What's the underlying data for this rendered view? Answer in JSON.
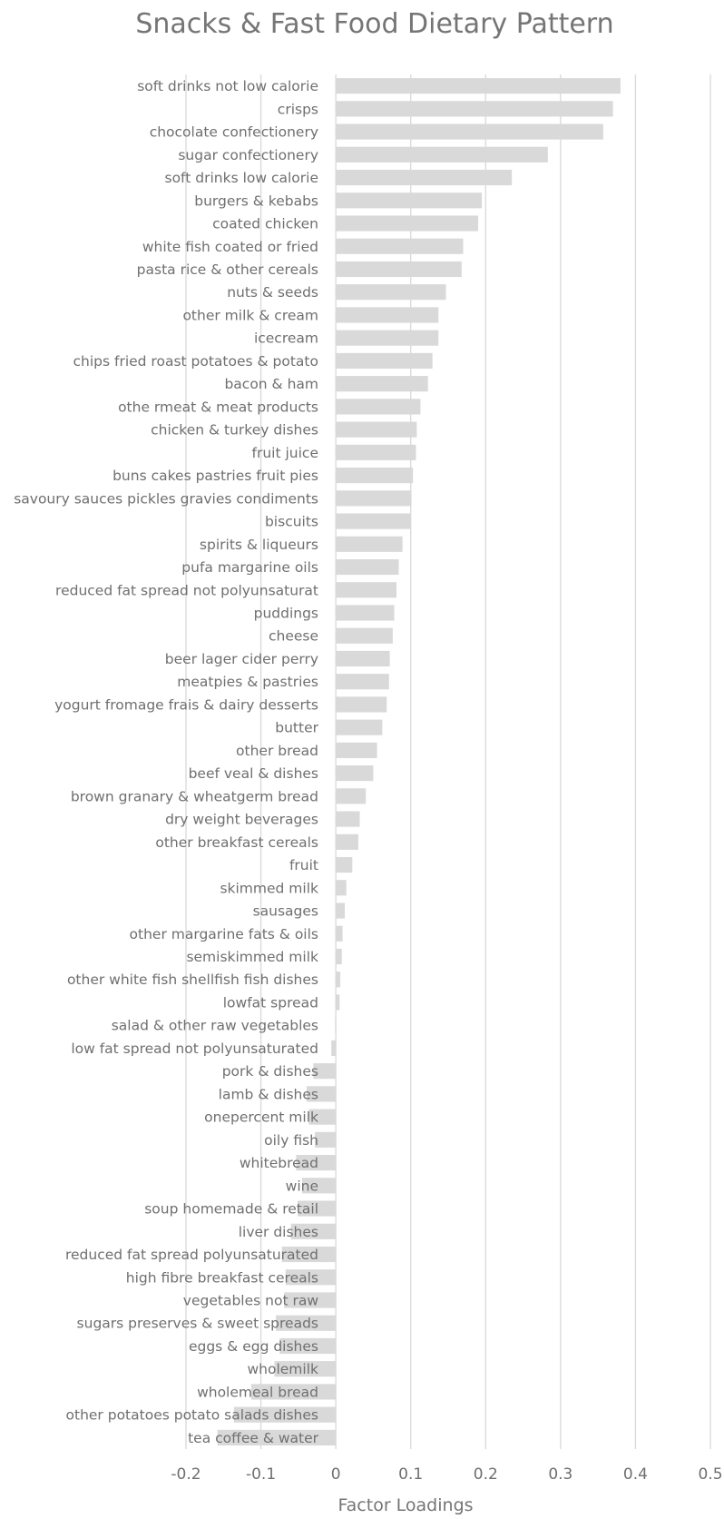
{
  "chart_data": {
    "type": "bar",
    "orientation": "horizontal",
    "title": "Snacks & Fast Food Dietary Pattern",
    "xlabel": "Factor Loadings",
    "ylabel": "",
    "xlim": [
      -0.2,
      0.5
    ],
    "x_ticks": [
      "-0.2",
      "-0.1",
      "0",
      "0.1",
      "0.2",
      "0.3",
      "0.4",
      "0.5"
    ],
    "grid": "vertical",
    "bar_color": "#d9d9d9",
    "categories": [
      "soft drinks not low calorie",
      "crisps",
      "chocolate confectionery",
      "sugar confectionery",
      "soft drinks low calorie",
      "burgers & kebabs",
      "coated chicken",
      "white fish coated or fried",
      "pasta rice & other cereals",
      "nuts & seeds",
      "other milk & cream",
      "icecream",
      "chips fried roast potatoes  & potato",
      "bacon & ham",
      "othe rmeat & meat products",
      "chicken & turkey dishes",
      "fruit juice",
      "buns cakes pastries fruit pies",
      "savoury sauces pickles gravies condiments",
      "biscuits",
      "spirits & liqueurs",
      "pufa margarine oils",
      "reduced fat spread not polyunsaturat",
      "puddings",
      "cheese",
      "beer lager cider perry",
      "meatpies & pastries",
      "yogurt fromage frais & dairy desserts",
      "butter",
      "other bread",
      "beef veal & dishes",
      "brown granary & wheatgerm bread",
      "dry weight beverages",
      "other breakfast cereals",
      "fruit",
      "skimmed milk",
      "sausages",
      "other margarine fats & oils",
      "semiskimmed milk",
      "other white fish shellfish fish dishes",
      "lowfat spread",
      "salad & other raw vegetables",
      "low fat spread not polyunsaturated",
      "pork & dishes",
      "lamb & dishes",
      "onepercent milk",
      "oily fish",
      "whitebread",
      "wine",
      "soup homemade & retail",
      "liver dishes",
      "reduced fat spread polyunsaturated",
      "high fibre breakfast cereals",
      "vegetables not raw",
      "sugars preserves & sweet spreads",
      "eggs & egg dishes",
      "wholemilk",
      "wholemeal bread",
      "other potatoes potato salads dishes",
      "tea coffee & water"
    ],
    "values": [
      0.38,
      0.37,
      0.357,
      0.283,
      0.235,
      0.195,
      0.19,
      0.17,
      0.168,
      0.147,
      0.137,
      0.137,
      0.129,
      0.123,
      0.113,
      0.108,
      0.107,
      0.103,
      0.101,
      0.1,
      0.089,
      0.084,
      0.081,
      0.078,
      0.076,
      0.072,
      0.071,
      0.068,
      0.062,
      0.055,
      0.05,
      0.04,
      0.032,
      0.03,
      0.022,
      0.014,
      0.012,
      0.009,
      0.008,
      0.006,
      0.005,
      -0.001,
      -0.006,
      -0.03,
      -0.039,
      -0.036,
      -0.028,
      -0.053,
      -0.045,
      -0.051,
      -0.06,
      -0.072,
      -0.067,
      -0.069,
      -0.08,
      -0.075,
      -0.082,
      -0.113,
      -0.136,
      -0.158
    ]
  }
}
